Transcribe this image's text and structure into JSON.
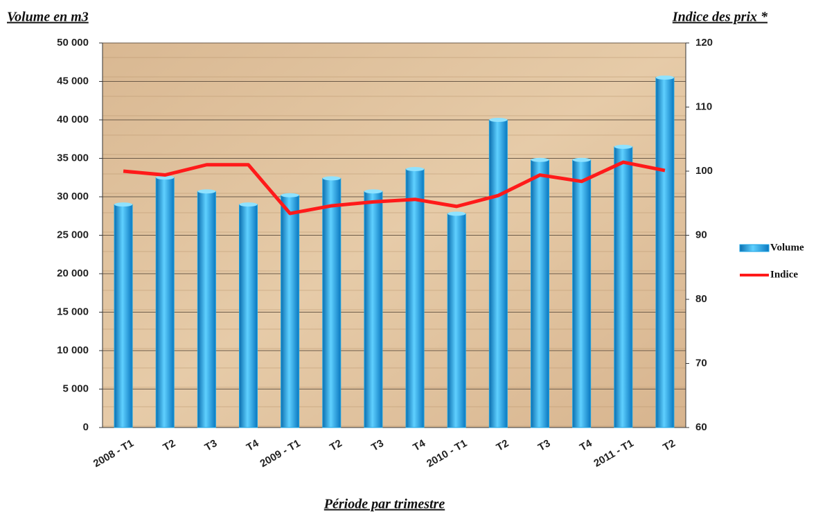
{
  "chart_data": {
    "type": "bar",
    "y_title": "Volume en m3",
    "y2_title": "Indice des prix *",
    "x_title": "Période par trimestre",
    "categories": [
      "2008 - T1",
      "T2",
      "T3",
      "T4",
      "2009 - T1",
      "T2",
      "T3",
      "T4",
      "2010 - T1",
      "T2",
      "T3",
      "T4",
      "2011 - T1",
      "T2"
    ],
    "series": [
      {
        "name": "Volume",
        "type": "bar",
        "color": "#1ba3e3",
        "values": [
          29000,
          32500,
          30700,
          29000,
          30200,
          32400,
          30700,
          33600,
          27800,
          40000,
          34800,
          34800,
          36500,
          45500
        ]
      },
      {
        "name": "Indice",
        "type": "line",
        "axis": "y2",
        "color": "#ff1a1a",
        "values": [
          100,
          99.4,
          101,
          101,
          93.4,
          94.6,
          95.2,
          95.6,
          94.5,
          96.2,
          99.4,
          98.4,
          101.4,
          100.1
        ]
      }
    ],
    "ylim": [
      0,
      50000
    ],
    "yticks": [
      0,
      {
        "value": 5000,
        "label": "5 000"
      },
      {
        "value": 10000,
        "label": "10 000"
      },
      {
        "value": 15000,
        "label": "15 000"
      },
      {
        "value": 20000,
        "label": "20 000"
      },
      {
        "value": 25000,
        "label": "25 000"
      },
      {
        "value": 30000,
        "label": "30 000"
      },
      {
        "value": 35000,
        "label": "35 000"
      },
      {
        "value": 40000,
        "label": "40 000"
      },
      {
        "value": 45000,
        "label": "45 000"
      },
      {
        "value": 50000,
        "label": "50 000"
      }
    ],
    "y2lim": [
      60,
      120
    ],
    "y2ticks": [
      60,
      70,
      80,
      90,
      100,
      110,
      120
    ],
    "grid": true,
    "legend": "right"
  }
}
